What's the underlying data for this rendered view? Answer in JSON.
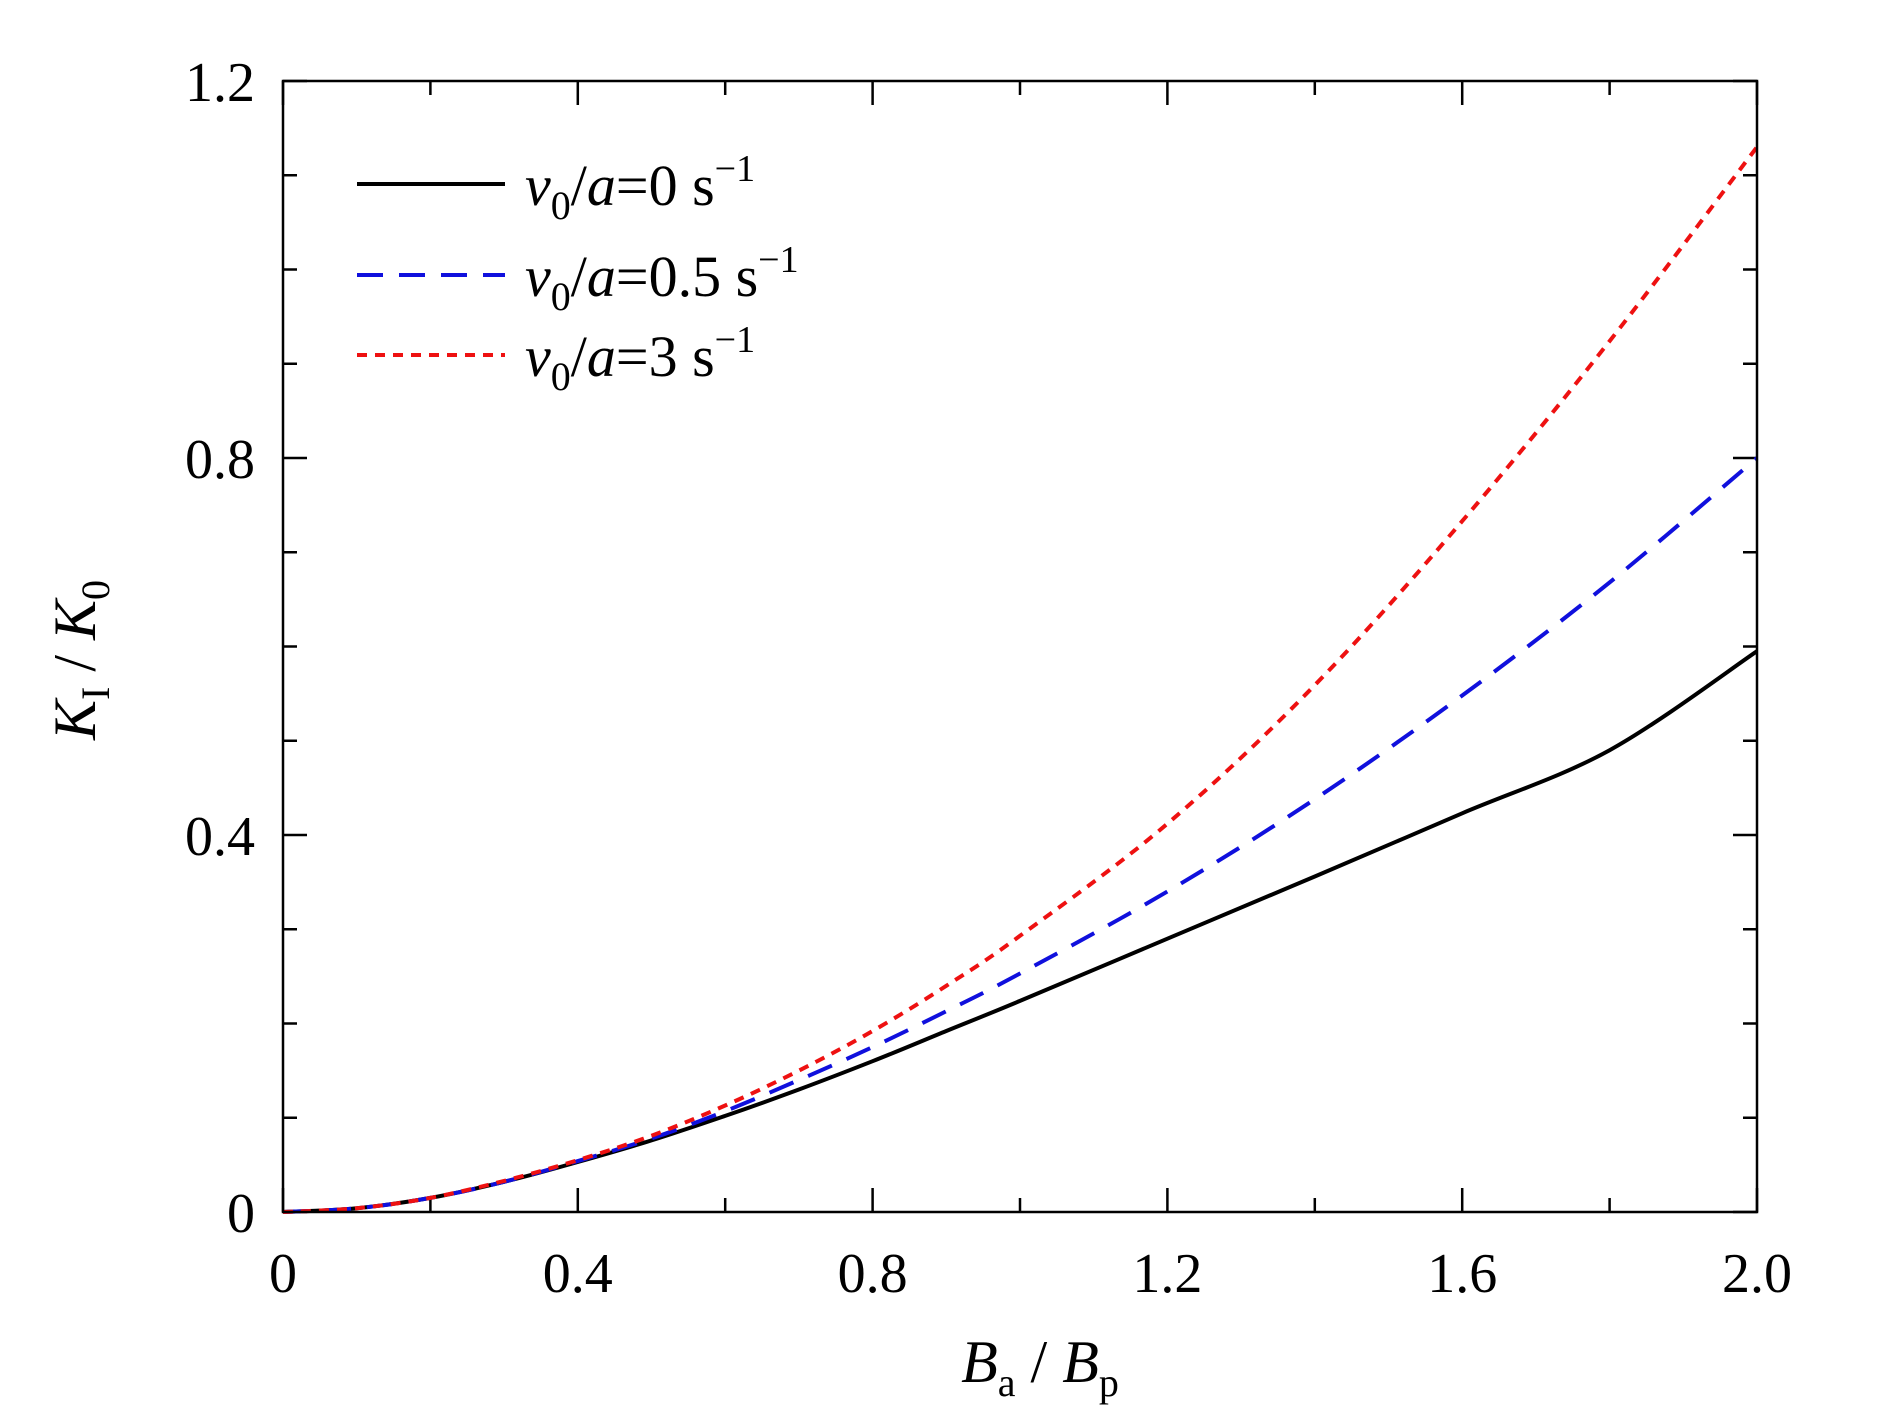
{
  "chart_data": {
    "type": "line",
    "xlabel": {
      "main": "B",
      "sub": "a",
      "sep": " / ",
      "main2": "B",
      "sub2": "p"
    },
    "ylabel": {
      "main": "K",
      "sub": "I",
      "sep": " / ",
      "main2": "K",
      "sub2": "0"
    },
    "xlim": [
      0,
      2.0
    ],
    "ylim": [
      0,
      1.2
    ],
    "x_ticks": [
      "0",
      "0.4",
      "0.8",
      "1.2",
      "1.6",
      "2.0"
    ],
    "y_ticks": [
      "0",
      "0.4",
      "0.8",
      "1.2"
    ],
    "legend_position": "top-left",
    "series": [
      {
        "name": "v0/a=0 s-1",
        "legend": {
          "v": "v",
          "sub": "0",
          "rest": "/a=0 s",
          "sup": "−1"
        },
        "color": "#000000",
        "style": "solid",
        "x": [
          0,
          0.1,
          0.2,
          0.3,
          0.4,
          0.5,
          0.6,
          0.7,
          0.8,
          0.9,
          1.0,
          1.2,
          1.4,
          1.6,
          1.8,
          2.0
        ],
        "y": [
          0,
          0.004,
          0.015,
          0.032,
          0.053,
          0.076,
          0.102,
          0.13,
          0.16,
          0.192,
          0.224,
          0.29,
          0.356,
          0.423,
          0.49,
          0.595
        ]
      },
      {
        "name": "v0/a=0.5 s-1",
        "legend": {
          "v": "v",
          "sub": "0",
          "rest": "/a=0.5 s",
          "sup": "−1"
        },
        "color": "#1010dd",
        "style": "dashed",
        "x": [
          0,
          0.1,
          0.2,
          0.3,
          0.4,
          0.5,
          0.6,
          0.7,
          0.8,
          0.9,
          1.0,
          1.2,
          1.4,
          1.6,
          1.8,
          2.0
        ],
        "y": [
          0,
          0.004,
          0.015,
          0.032,
          0.054,
          0.078,
          0.107,
          0.14,
          0.175,
          0.213,
          0.253,
          0.34,
          0.438,
          0.548,
          0.668,
          0.8
        ]
      },
      {
        "name": "v0/a=3 s-1",
        "legend": {
          "v": "v",
          "sub": "0",
          "rest": "/a=3 s",
          "sup": "−1"
        },
        "color": "#ee1111",
        "style": "dotted",
        "x": [
          0,
          0.1,
          0.2,
          0.3,
          0.4,
          0.5,
          0.6,
          0.7,
          0.8,
          0.9,
          1.0,
          1.2,
          1.4,
          1.6,
          1.8,
          2.0
        ],
        "y": [
          0,
          0.004,
          0.015,
          0.033,
          0.055,
          0.081,
          0.113,
          0.15,
          0.192,
          0.24,
          0.293,
          0.412,
          0.559,
          0.733,
          0.924,
          1.13
        ]
      }
    ]
  }
}
